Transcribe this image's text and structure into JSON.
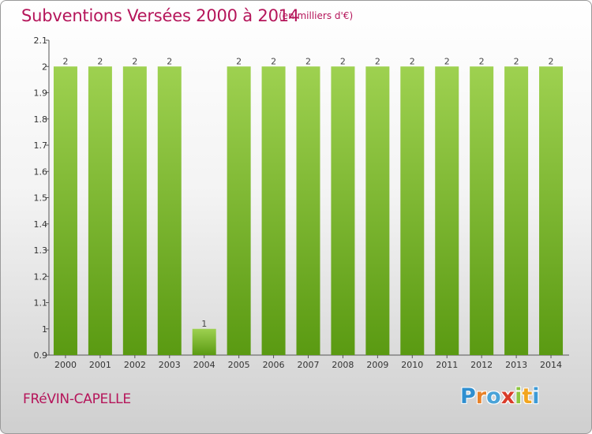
{
  "title": "Subventions Versées 2000 à 2014",
  "unit": "(en milliers d'€)",
  "commune": "FRéVIN-CAPELLE",
  "logo": {
    "text": "Proxiti",
    "letter_colors": [
      "#2f8fd0",
      "#e8822a",
      "#4aa3d8",
      "#d93d2b",
      "#8cc63e",
      "#f2a51f",
      "#3d9ad6"
    ]
  },
  "colors": {
    "bar_light": "#9ed150",
    "bar_dark": "#5a9a12",
    "axis": "#555555",
    "title": "#b5155a"
  },
  "chart_data": {
    "type": "bar",
    "title": "Subventions Versées 2000 à 2014",
    "xlabel": "",
    "ylabel": "",
    "ylim": [
      0.9,
      2.1
    ],
    "yticks": [
      "0.9",
      "1",
      "1.1",
      "1.2",
      "1.3",
      "1.4",
      "1.5",
      "1.6",
      "1.7",
      "1.8",
      "1.9",
      "2",
      "2.1"
    ],
    "categories": [
      "2000",
      "2001",
      "2002",
      "2003",
      "2004",
      "2005",
      "2006",
      "2007",
      "2008",
      "2009",
      "2010",
      "2011",
      "2012",
      "2013",
      "2014"
    ],
    "values": [
      2,
      2,
      2,
      2,
      1,
      2,
      2,
      2,
      2,
      2,
      2,
      2,
      2,
      2,
      2
    ],
    "data_labels": [
      "2",
      "2",
      "2",
      "2",
      "1",
      "2",
      "2",
      "2",
      "2",
      "2",
      "2",
      "2",
      "2",
      "2",
      "2"
    ],
    "grid": false,
    "legend": "none"
  }
}
